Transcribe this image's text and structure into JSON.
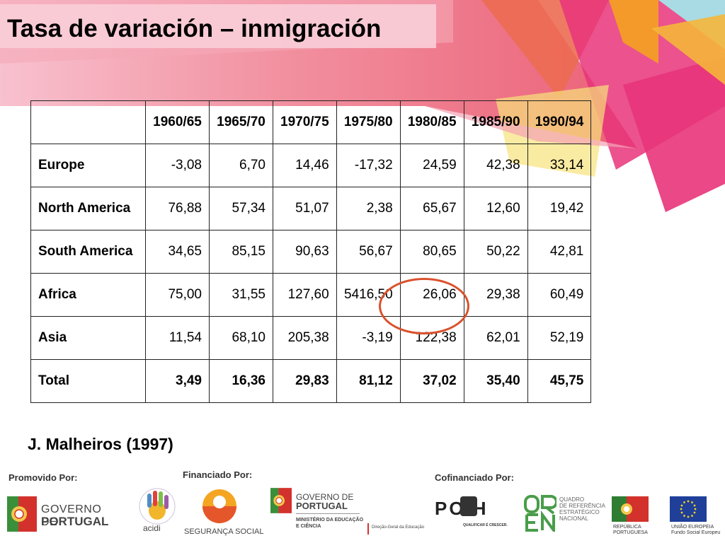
{
  "slide": {
    "title": "Tasa de variación – inmigración",
    "source": "J. Malheiros (1997)"
  },
  "table": {
    "headers": [
      "",
      "1960/65",
      "1965/70",
      "1970/75",
      "1975/80",
      "1980/85",
      "1985/90",
      "1990/94"
    ],
    "rows": [
      {
        "label": "Europe",
        "values": [
          "-3,08",
          "6,70",
          "14,46",
          "-17,32",
          "24,59",
          "42,38",
          "33,14"
        ]
      },
      {
        "label": "North America",
        "values": [
          "76,88",
          "57,34",
          "51,07",
          "2,38",
          "65,67",
          "12,60",
          "19,42"
        ]
      },
      {
        "label": "South America",
        "values": [
          "34,65",
          "85,15",
          "90,63",
          "56,67",
          "80,65",
          "50,22",
          "42,81"
        ]
      },
      {
        "label": "Africa",
        "values": [
          "75,00",
          "31,55",
          "127,60",
          "5416,50",
          "26,06",
          "29,38",
          "60,49"
        ]
      },
      {
        "label": "Asia",
        "values": [
          "11,54",
          "68,10",
          "205,38",
          "-3,19",
          "122,38",
          "62,01",
          "52,19"
        ]
      },
      {
        "label": "Total",
        "values": [
          "3,49",
          "16,36",
          "29,83",
          "81,12",
          "37,02",
          "35,40",
          "45,75"
        ]
      }
    ]
  },
  "footer": {
    "promovido_label": "Promovido Por:",
    "financiado_label": "Financiado Por:",
    "cofinanciado_label": "Cofinanciado Por:",
    "gov_pt_line1": "GOVERNO DE",
    "gov_pt_line2": "PORTUGAL",
    "acidi": "acidi",
    "seguranca_social": "SEGURANÇA SOCIAL",
    "gov_pt2_line1": "GOVERNO DE",
    "gov_pt2_line2": "PORTUGAL",
    "ministerio_line1": "MINISTÉRIO DA EDUCAÇÃO",
    "ministerio_line2": "E CIÊNCIA",
    "direcao_geral": "Direção-Geral da Educação",
    "poph": "PO H",
    "poph_tagline": "QUALIFICAR É CRESCER.",
    "qren_line1": "QUADRO",
    "qren_line2": "DE REFERÊNCIA",
    "qren_line3": "ESTRATÉGICO",
    "qren_line4": "NACIONAL",
    "republica_line1": "REPÚBLICA",
    "republica_line2": "PORTUGUESA",
    "ue_line1": "UNIÃO EUROPEIA",
    "ue_line2": "Fundo Social Europeu"
  },
  "colors": {
    "highlight_circle": "#d9512c",
    "title_bg": "#f8cdd7",
    "decor_pink": "#e8347a",
    "decor_orange": "#f39a2b",
    "decor_coral": "#ec6b52",
    "decor_yellow": "#f6e27a",
    "decor_cyan": "#a8dbe4"
  }
}
